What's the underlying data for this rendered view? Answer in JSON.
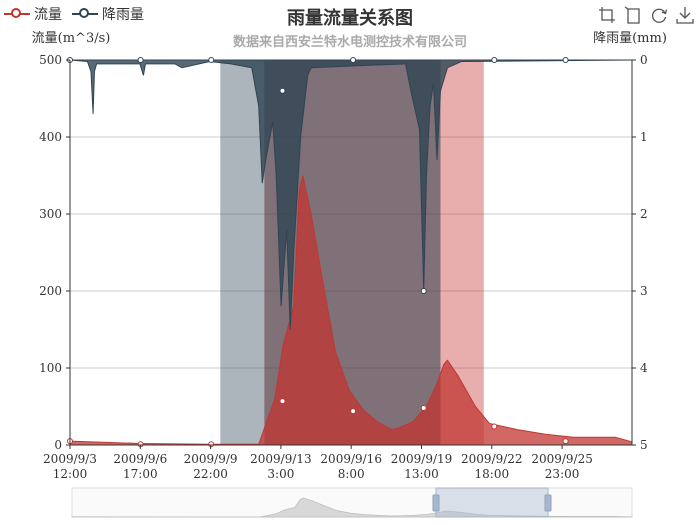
{
  "title": "雨量流量关系图",
  "subtitle": "数据来自西安兰特水电测控技术有限公司",
  "legend": [
    {
      "name": "流量",
      "color": "#c23531"
    },
    {
      "name": "降雨量",
      "color": "#2f4554"
    }
  ],
  "toolbox": [
    "zoom-icon",
    "zoom-reset-icon",
    "restore-icon",
    "save-image-icon"
  ],
  "chart_data": {
    "type": "area",
    "title": "雨量流量关系图",
    "x_ticks": [
      "2009/9/3\n12:00",
      "2009/9/6\n17:00",
      "2009/9/9\n22:00",
      "2009/9/13\n3:00",
      "2009/9/16\n8:00",
      "2009/9/19\n13:00",
      "2009/9/22\n18:00",
      "2009/9/25\n23:00"
    ],
    "x_range_hours": [
      0,
      804
    ],
    "x_start": "2009/9/3 12:00",
    "y_left": {
      "label": "流量(m^3/s)",
      "ylim": [
        0,
        500
      ],
      "ticks": [
        0,
        100,
        200,
        300,
        400,
        500
      ]
    },
    "y_right": {
      "label": "降雨量(mm)",
      "ylim": [
        0,
        5
      ],
      "inverse": true,
      "ticks": [
        0,
        1,
        2,
        3,
        4,
        5
      ]
    },
    "grid": true,
    "series": [
      {
        "name": "流量",
        "color": "#c23531",
        "axis": "left",
        "points": [
          [
            0,
            5
          ],
          [
            100,
            2
          ],
          [
            200,
            1
          ],
          [
            270,
            1
          ],
          [
            293,
            60
          ],
          [
            305,
            130
          ],
          [
            320,
            180
          ],
          [
            328,
            330
          ],
          [
            333,
            350
          ],
          [
            345,
            300
          ],
          [
            360,
            220
          ],
          [
            380,
            120
          ],
          [
            400,
            70
          ],
          [
            420,
            45
          ],
          [
            440,
            30
          ],
          [
            460,
            20
          ],
          [
            470,
            22
          ],
          [
            490,
            30
          ],
          [
            510,
            50
          ],
          [
            525,
            80
          ],
          [
            535,
            105
          ],
          [
            540,
            110
          ],
          [
            555,
            90
          ],
          [
            580,
            50
          ],
          [
            600,
            28
          ],
          [
            640,
            20
          ],
          [
            680,
            14
          ],
          [
            720,
            10
          ],
          [
            780,
            10
          ],
          [
            804,
            4
          ]
        ],
        "marked_points": [
          [
            0,
            5
          ],
          [
            101,
            1
          ],
          [
            202,
            1
          ],
          [
            304,
            57
          ],
          [
            405,
            44
          ],
          [
            506,
            48
          ],
          [
            607,
            24
          ],
          [
            709,
            5
          ]
        ]
      },
      {
        "name": "降雨量",
        "color": "#2f4554",
        "axis": "right",
        "inverse": true,
        "points": [
          [
            0,
            0
          ],
          [
            25,
            0.02
          ],
          [
            30,
            0.15
          ],
          [
            33,
            0.7
          ],
          [
            35,
            0.15
          ],
          [
            38,
            0.05
          ],
          [
            100,
            0.05
          ],
          [
            105,
            0.2
          ],
          [
            108,
            0.05
          ],
          [
            150,
            0.05
          ],
          [
            160,
            0.1
          ],
          [
            200,
            0.02
          ],
          [
            230,
            0.05
          ],
          [
            260,
            0.1
          ],
          [
            270,
            0.6
          ],
          [
            275,
            1.6
          ],
          [
            280,
            1.3
          ],
          [
            290,
            0.8
          ],
          [
            295,
            1.5
          ],
          [
            302,
            3.2
          ],
          [
            310,
            2.2
          ],
          [
            315,
            3.5
          ],
          [
            320,
            2.5
          ],
          [
            330,
            1
          ],
          [
            340,
            0.2
          ],
          [
            345,
            0.1
          ],
          [
            480,
            0.05
          ],
          [
            490,
            0.5
          ],
          [
            500,
            0.9
          ],
          [
            506,
            3
          ],
          [
            510,
            1.5
          ],
          [
            515,
            0.6
          ],
          [
            520,
            0.3
          ],
          [
            525,
            1.3
          ],
          [
            530,
            0.4
          ],
          [
            540,
            0.1
          ],
          [
            560,
            0.02
          ],
          [
            804,
            0
          ]
        ],
        "marked_points": [
          [
            0,
            0
          ],
          [
            101,
            0
          ],
          [
            202,
            0
          ],
          [
            304,
            0.4
          ],
          [
            405,
            0
          ],
          [
            506,
            3
          ],
          [
            607,
            0
          ],
          [
            709,
            0
          ]
        ]
      }
    ],
    "mark_areas": [
      {
        "from": 215,
        "to": 278,
        "color": "#2f4554",
        "opacity": 0.4
      },
      {
        "from": 278,
        "to": 530,
        "color": "#c23531",
        "opacity": 0.45
      },
      {
        "from": 278,
        "to": 530,
        "color": "#2f4554",
        "opacity": 0.55
      },
      {
        "from": 530,
        "to": 592,
        "color": "#c23531",
        "opacity": 0.4
      }
    ],
    "datazoom": {
      "start": 0.65,
      "end": 0.85
    }
  }
}
